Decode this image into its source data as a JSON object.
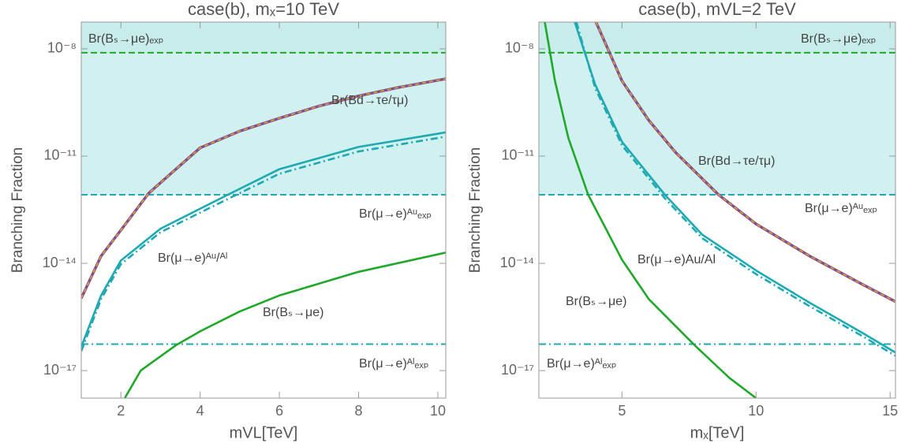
{
  "chart_data": [
    {
      "type": "line",
      "title": "case(b), mₓ=10 TeV",
      "xlabel": "mVL[TeV]",
      "ylabel": "Branching Fraction",
      "log_y": true,
      "xlim": [
        1,
        10.2
      ],
      "xticks": [
        2,
        4,
        6,
        8,
        10
      ],
      "ylim": [
        1.7e-18,
        5.6e-08
      ],
      "yticks": [
        {
          "value": 1e-08,
          "label": "10⁻⁸"
        },
        {
          "value": 1e-11,
          "label": "10⁻¹¹"
        },
        {
          "value": 1e-14,
          "label": "10⁻¹⁴"
        },
        {
          "value": 1e-17,
          "label": "10⁻¹⁷"
        }
      ],
      "limits": [
        {
          "name": "Br(Bₛ→μe)ₑₓₚ",
          "value": 7.8e-09,
          "color": "#1fa82a",
          "band_color": "#aee0c8",
          "dash": "dashed"
        },
        {
          "name": "Br(μ→e)ᴬᵘₑₓₚ",
          "value": 8.3e-13,
          "color": "#1faab3",
          "band_color": "#c9eded",
          "dash": "dashed"
        },
        {
          "name": "Br(μ→e)ᴬˡₑₓₚ",
          "value": 5.5e-17,
          "color": "#1faab3",
          "dash": "dashdot"
        }
      ],
      "series": [
        {
          "name": "Br(Bd→τe/τμ)",
          "color": "#7e4f8e",
          "dash_color": "#e8a030",
          "x": [
            1,
            1.5,
            2,
            2.7,
            3,
            4,
            5,
            6,
            7,
            8,
            9,
            10.2
          ],
          "values": [
            1.05e-15,
            1.6e-14,
            8.5e-14,
            9.1e-13,
            1.8e-12,
            1.7e-11,
            5e-11,
            1.15e-10,
            2.5e-10,
            4.8e-10,
            8.3e-10,
            1.45e-09
          ]
        },
        {
          "name": "Br(μ→e)ᴬᵘ/ᴬˡ",
          "color": "#1faab3",
          "x": [
            1,
            1.5,
            2,
            3,
            4.7,
            6,
            8,
            10.2
          ],
          "values": [
            4.6e-17,
            1.26e-15,
            1.2e-14,
            9.3e-14,
            8.3e-13,
            4.3e-12,
            1.8e-11,
            4.6e-11
          ]
        },
        {
          "color": "#1faab3",
          "dash": "dashdot",
          "x": [
            1,
            1.5,
            2,
            3,
            4.7,
            6,
            8,
            10.2
          ],
          "values": [
            3.5e-17,
            1e-15,
            9.5e-15,
            7.4e-14,
            6.3e-13,
            3.2e-12,
            1.35e-11,
            3.5e-11
          ]
        },
        {
          "name": "Br(Bₛ→μe)",
          "color": "#1fa82a",
          "x": [
            2.1,
            2.5,
            3.4,
            4,
            5,
            6,
            8,
            10.2
          ],
          "values": [
            1.7e-18,
            1e-17,
            5.2e-17,
            1.26e-16,
            4.5e-16,
            1.26e-15,
            5.8e-15,
            2e-14
          ]
        }
      ]
    },
    {
      "type": "line",
      "title": "case(b), mVL=2 TeV",
      "xlabel": "mₓ[TeV]",
      "ylabel": "Branching Fraction",
      "log_y": true,
      "xlim": [
        1.9,
        15.2
      ],
      "xticks": [
        5,
        10,
        15
      ],
      "ylim": [
        1.7e-18,
        5.6e-08
      ],
      "yticks": [
        {
          "value": 1e-08,
          "label": "10⁻⁸"
        },
        {
          "value": 1e-11,
          "label": "10⁻¹¹"
        },
        {
          "value": 1e-14,
          "label": "10⁻¹⁴"
        },
        {
          "value": 1e-17,
          "label": "10⁻¹⁷"
        }
      ],
      "limits": [
        {
          "name": "Br(Bₛ→μe)ₑₓₚ",
          "value": 7.8e-09,
          "color": "#1fa82a",
          "band_color": "#aee0c8",
          "dash": "dashed"
        },
        {
          "name": "Br(μ→e)ᴬᵘₑₓₚ",
          "value": 8.3e-13,
          "color": "#1faab3",
          "band_color": "#c9eded",
          "dash": "dashed"
        },
        {
          "name": "Br(μ→e)ᴬˡₑₓₚ",
          "value": 5.5e-17,
          "color": "#1faab3",
          "dash": "dashdot"
        }
      ],
      "series": [
        {
          "name": "Br(Bd→τe/τμ)",
          "color": "#7e4f8e",
          "dash_color": "#e8a030",
          "x": [
            4.03,
            5,
            6,
            7,
            8.6,
            10,
            12,
            14,
            15.2
          ],
          "values": [
            5.6e-08,
            1.26e-09,
            1e-10,
            1.26e-11,
            8.3e-13,
            1.26e-13,
            1.6e-14,
            2.5e-15,
            8.5e-16
          ]
        },
        {
          "name": "Br(μ→e)Au/Al",
          "color": "#1faab3",
          "x": [
            3.24,
            4,
            5,
            6.6,
            8,
            10,
            12,
            14,
            15.2
          ],
          "values": [
            5.6e-08,
            1e-09,
            2.5e-11,
            8.3e-13,
            6.3e-14,
            6.3e-15,
            7.9e-16,
            1.1e-16,
            3.2e-17
          ]
        },
        {
          "color": "#1faab3",
          "dash": "dashdot",
          "x": [
            3.3,
            4,
            5,
            6.6,
            8,
            10,
            12,
            14,
            15.2
          ],
          "values": [
            5.6e-08,
            8e-10,
            2e-11,
            6.6e-13,
            5e-14,
            5e-15,
            6.3e-16,
            8.9e-17,
            2.6e-17
          ]
        },
        {
          "name": "Br(Bₛ→μe)",
          "color": "#1fa82a",
          "x": [
            2.12,
            2.5,
            3,
            3.74,
            5,
            6,
            7.7,
            9,
            10
          ],
          "values": [
            5.6e-08,
            1.26e-09,
            3.2e-11,
            8.3e-13,
            1.26e-14,
            1e-15,
            5.2e-17,
            6.3e-18,
            1.7e-18
          ]
        }
      ]
    }
  ]
}
